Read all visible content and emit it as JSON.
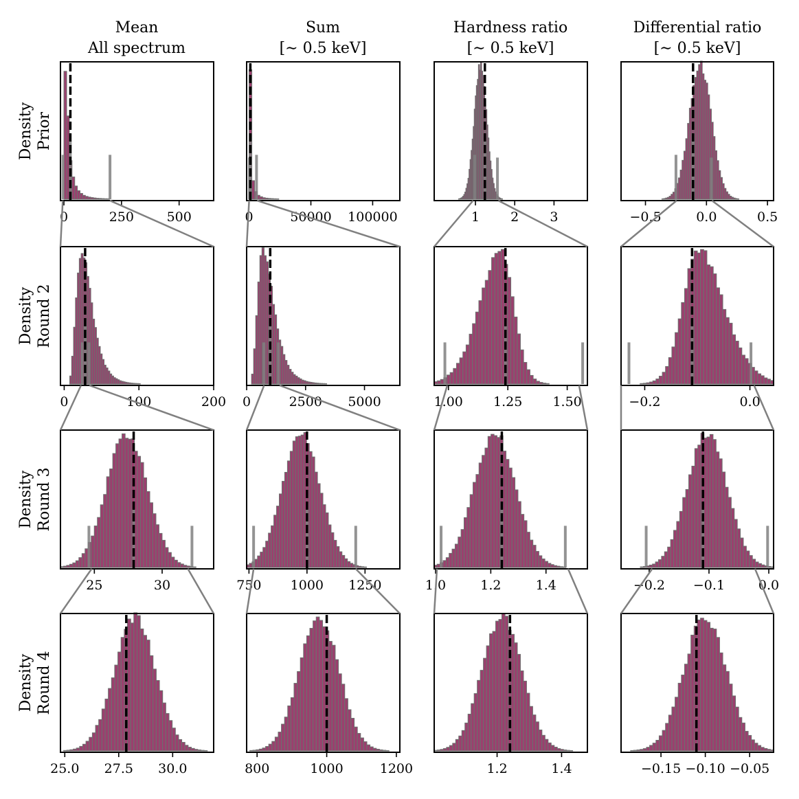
{
  "columns": [
    {
      "title_lines": [
        "Mean",
        "All spectrum"
      ]
    },
    {
      "title_lines": [
        "Sum",
        "[∼ 0.5 keV]"
      ]
    },
    {
      "title_lines": [
        "Hardness ratio",
        "[∼ 0.5 keV]"
      ]
    },
    {
      "title_lines": [
        "Differential ratio",
        "[∼ 0.5 keV]"
      ]
    }
  ],
  "rows": [
    {
      "label_lines": [
        "Density",
        "Prior"
      ]
    },
    {
      "label_lines": [
        "Density",
        "Round 2"
      ]
    },
    {
      "label_lines": [
        "Density",
        "Round 3"
      ]
    },
    {
      "label_lines": [
        "Density",
        "Round 4"
      ]
    }
  ],
  "colors": {
    "bar_fill": "#9b3f6e",
    "bar_edge": "#6e6e6e",
    "truth_line": "#000000",
    "zoom_line": "#808080",
    "prior_sample_line": "#808080"
  },
  "chart_data": [
    {
      "type": "histogram",
      "row": 0,
      "col": 0,
      "xlim": [
        -15,
        650
      ],
      "ticks": [
        0,
        250,
        500
      ],
      "tick_labels": [
        "0",
        "250",
        "500"
      ],
      "dist": "lognormal",
      "mode": 5,
      "spread": 1.05,
      "truth": 28,
      "samples": [
        -4,
        28,
        200
      ],
      "sample_heights": [
        0.32,
        0.42,
        0.32
      ]
    },
    {
      "type": "histogram",
      "row": 0,
      "col": 1,
      "xlim": [
        -2000,
        122000
      ],
      "ticks": [
        0,
        50000,
        100000
      ],
      "tick_labels": [
        "0",
        "50000",
        "100000"
      ],
      "dist": "lognormal",
      "mode": 50,
      "spread": 1.6,
      "truth": 1000,
      "samples": [
        300,
        1000,
        6000
      ],
      "sample_heights": [
        0.3,
        0.42,
        0.32
      ]
    },
    {
      "type": "histogram",
      "row": 0,
      "col": 2,
      "xlim": [
        -0.05,
        3.85
      ],
      "ticks": [
        1,
        2,
        3
      ],
      "tick_labels": [
        "1",
        "2",
        "3"
      ],
      "dist": "normal",
      "center": 1.13,
      "sigma": 0.16,
      "truth": 1.24,
      "samples": [
        0.98,
        1.24,
        1.56
      ],
      "sample_heights": [
        0.32,
        0.42,
        0.3
      ]
    },
    {
      "type": "histogram",
      "row": 0,
      "col": 3,
      "xlim": [
        -0.7,
        0.55
      ],
      "ticks": [
        -0.5,
        0.0,
        0.5
      ],
      "tick_labels": [
        "−0.5",
        "0.0",
        "0.5"
      ],
      "dist": "normal",
      "center": -0.05,
      "sigma": 0.09,
      "truth": -0.11,
      "samples": [
        -0.25,
        -0.11,
        0.04
      ],
      "sample_heights": [
        0.32,
        0.42,
        0.3
      ]
    },
    {
      "type": "histogram",
      "row": 1,
      "col": 0,
      "xlim": [
        -5,
        200
      ],
      "ticks": [
        0,
        100,
        200
      ],
      "tick_labels": [
        "0",
        "100",
        "200"
      ],
      "dist": "lognormal",
      "mode": 24,
      "spread": 0.42,
      "truth": 28,
      "samples": [
        24,
        28,
        33
      ],
      "sample_heights": [
        0.3,
        0.42,
        0.3
      ]
    },
    {
      "type": "histogram",
      "row": 1,
      "col": 1,
      "xlim": [
        0,
        6500
      ],
      "ticks": [
        0,
        2500,
        5000
      ],
      "tick_labels": [
        "0",
        "2500",
        "5000"
      ],
      "dist": "lognormal",
      "mode": 720,
      "spread": 0.45,
      "truth": 1000,
      "samples": [
        730,
        1000,
        1350
      ],
      "sample_heights": [
        0.3,
        0.42,
        0.3
      ]
    },
    {
      "type": "histogram",
      "row": 1,
      "col": 2,
      "xlim": [
        0.94,
        1.585
      ],
      "ticks": [
        1.0,
        1.25,
        1.5
      ],
      "tick_labels": [
        "1.00",
        "1.25",
        "1.50"
      ],
      "dist": "skewnormal",
      "center": 1.27,
      "sigma": 0.11,
      "alpha": -2.2,
      "truth": 1.24,
      "samples": [
        0.985,
        1.24,
        1.565
      ],
      "sample_heights": [
        0.3,
        0.42,
        0.3
      ]
    },
    {
      "type": "histogram",
      "row": 1,
      "col": 3,
      "xlim": [
        -0.245,
        0.045
      ],
      "ticks": [
        -0.2,
        0.0
      ],
      "tick_labels": [
        "−0.2",
        "0.0"
      ],
      "dist": "skewnormal",
      "center": -0.125,
      "sigma": 0.06,
      "alpha": 2.2,
      "truth": -0.11,
      "samples": [
        -0.23,
        -0.11,
        0.002
      ],
      "sample_heights": [
        0.3,
        0.42,
        0.3
      ]
    },
    {
      "type": "histogram",
      "row": 2,
      "col": 0,
      "xlim": [
        22.5,
        33.8
      ],
      "ticks": [
        25,
        30
      ],
      "tick_labels": [
        "25",
        "30"
      ],
      "dist": "normal",
      "center": 27.4,
      "sigma": 1.5,
      "truth": 27.9,
      "samples": [
        24.6,
        27.9,
        32.2
      ],
      "sample_heights": [
        0.3,
        0.42,
        0.3
      ]
    },
    {
      "type": "histogram",
      "row": 2,
      "col": 1,
      "xlim": [
        740,
        1400
      ],
      "ticks": [
        750,
        1000,
        1250
      ],
      "tick_labels": [
        "750",
        "1000",
        "1250"
      ],
      "dist": "normal",
      "center": 975,
      "sigma": 82,
      "truth": 1000,
      "samples": [
        770,
        1000,
        1210
      ],
      "sample_heights": [
        0.3,
        0.42,
        0.3
      ]
    },
    {
      "type": "histogram",
      "row": 2,
      "col": 2,
      "xlim": [
        0.995,
        1.55
      ],
      "ticks": [
        1.0,
        1.2,
        1.4
      ],
      "tick_labels": [
        "1.0",
        "1.2",
        "1.4"
      ],
      "dist": "normal",
      "center": 1.215,
      "sigma": 0.075,
      "truth": 1.24,
      "samples": [
        1.02,
        1.24,
        1.47
      ],
      "sample_heights": [
        0.3,
        0.42,
        0.3
      ]
    },
    {
      "type": "histogram",
      "row": 2,
      "col": 3,
      "xlim": [
        -0.247,
        0.008
      ],
      "ticks": [
        -0.2,
        -0.1,
        0.0
      ],
      "tick_labels": [
        "−0.2",
        "−0.1",
        "0.0"
      ],
      "dist": "normal",
      "center": -0.103,
      "sigma": 0.033,
      "truth": -0.11,
      "samples": [
        -0.205,
        -0.11,
        -0.002
      ],
      "sample_heights": [
        0.3,
        0.42,
        0.3
      ]
    },
    {
      "type": "histogram",
      "row": 3,
      "col": 0,
      "xlim": [
        24.8,
        31.9
      ],
      "ticks": [
        25.0,
        27.5,
        30.0
      ],
      "tick_labels": [
        "25.0",
        "27.5",
        "30.0"
      ],
      "dist": "normal",
      "center": 28.25,
      "sigma": 0.95,
      "truth": 27.85,
      "samples": []
    },
    {
      "type": "histogram",
      "row": 3,
      "col": 1,
      "xlim": [
        770,
        1210
      ],
      "ticks": [
        800,
        1000,
        1200
      ],
      "tick_labels": [
        "800",
        "1000",
        "1200"
      ],
      "dist": "normal",
      "center": 978,
      "sigma": 57,
      "truth": 1000,
      "samples": []
    },
    {
      "type": "histogram",
      "row": 3,
      "col": 2,
      "xlim": [
        1.005,
        1.48
      ],
      "ticks": [
        1.2,
        1.4
      ],
      "tick_labels": [
        "1.2",
        "1.4"
      ],
      "dist": "normal",
      "center": 1.215,
      "sigma": 0.062,
      "truth": 1.24,
      "samples": []
    },
    {
      "type": "histogram",
      "row": 3,
      "col": 3,
      "xlim": [
        -0.195,
        -0.023
      ],
      "ticks": [
        -0.15,
        -0.1,
        -0.05
      ],
      "tick_labels": [
        "−0.15",
        "−0.10",
        "−0.05"
      ],
      "dist": "normal",
      "center": -0.1,
      "sigma": 0.024,
      "truth": -0.11,
      "samples": []
    }
  ]
}
